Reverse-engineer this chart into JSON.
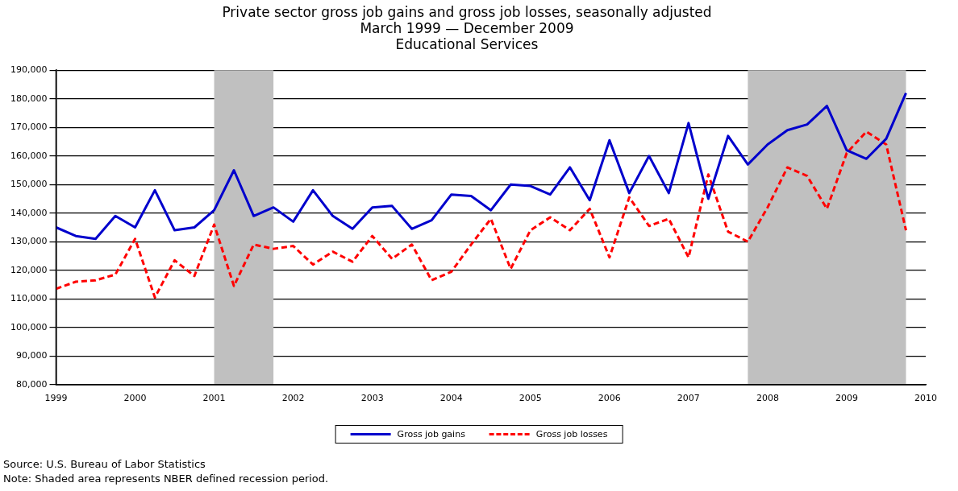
{
  "chart_data": {
    "type": "line",
    "title": "Private sector gross job gains and gross job losses, seasonally adjusted",
    "subtitle": "March 1999 — December 2009\nEducational Services",
    "x": [
      1999,
      1999.25,
      1999.5,
      1999.75,
      2000,
      2000.25,
      2000.5,
      2000.75,
      2001,
      2001.25,
      2001.5,
      2001.75,
      2002,
      2002.25,
      2002.5,
      2002.75,
      2003,
      2003.25,
      2003.5,
      2003.75,
      2004,
      2004.25,
      2004.5,
      2004.75,
      2005,
      2005.25,
      2005.5,
      2005.75,
      2006,
      2006.25,
      2006.5,
      2006.75,
      2007,
      2007.25,
      2007.5,
      2007.75,
      2008,
      2008.25,
      2008.5,
      2008.75,
      2009,
      2009.25,
      2009.5,
      2009.75
    ],
    "series": [
      {
        "name": "Gross job gains",
        "color": "#0000cc",
        "line_style": "solid",
        "values": [
          135000,
          132000,
          131000,
          139000,
          135000,
          148000,
          134000,
          135000,
          141000,
          155000,
          139000,
          142000,
          137000,
          148000,
          139000,
          134500,
          142000,
          142500,
          134500,
          137500,
          146500,
          146000,
          141000,
          150000,
          149500,
          146500,
          156000,
          144500,
          165500,
          147000,
          160000,
          147000,
          171500,
          145000,
          167000,
          157000,
          164000,
          169000,
          171000,
          177500,
          162000,
          159000,
          166000,
          182000
        ]
      },
      {
        "name": "Gross job losses",
        "color": "#ff0000",
        "line_style": "dashed",
        "values": [
          113500,
          116000,
          116500,
          118500,
          131000,
          110500,
          123500,
          118000,
          136000,
          114500,
          129000,
          127500,
          128500,
          122000,
          126500,
          123000,
          132000,
          124000,
          129000,
          116500,
          119500,
          129000,
          138000,
          120500,
          134000,
          138500,
          134000,
          141500,
          124500,
          145500,
          135500,
          138000,
          124500,
          153500,
          133500,
          130000,
          142000,
          156000,
          153000,
          141500,
          161000,
          168500,
          164000,
          134000
        ]
      }
    ],
    "xlim": [
      1999,
      2010
    ],
    "xticks": [
      1999,
      2000,
      2001,
      2002,
      2003,
      2004,
      2005,
      2006,
      2007,
      2008,
      2009,
      2010
    ],
    "ylim": [
      80000,
      190000
    ],
    "yticks": [
      {
        "value": 80000,
        "label": "80,000"
      },
      {
        "value": 90000,
        "label": "90,000"
      },
      {
        "value": 100000,
        "label": "100,000"
      },
      {
        "value": 110000,
        "label": "110,000"
      },
      {
        "value": 120000,
        "label": "120,000"
      },
      {
        "value": 130000,
        "label": "130,000"
      },
      {
        "value": 140000,
        "label": "140,000"
      },
      {
        "value": 150000,
        "label": "150,000"
      },
      {
        "value": 160000,
        "label": "160,000"
      },
      {
        "value": 170000,
        "label": "170,000"
      },
      {
        "value": 180000,
        "label": "180,000"
      },
      {
        "value": 190000,
        "label": "190,000"
      }
    ],
    "bands": [
      {
        "axis": "x",
        "from": 2001,
        "to": 2001.75,
        "color": "#c0c0c0"
      },
      {
        "axis": "x",
        "from": 2007.75,
        "to": 2009.75,
        "color": "#c0c0c0"
      }
    ],
    "grid": "y",
    "legend": "bottom",
    "marker": "none",
    "annotations": [
      "Source: U.S. Bureau of Labor Statistics",
      "Note: Shaded area represents NBER defined recession period."
    ]
  }
}
